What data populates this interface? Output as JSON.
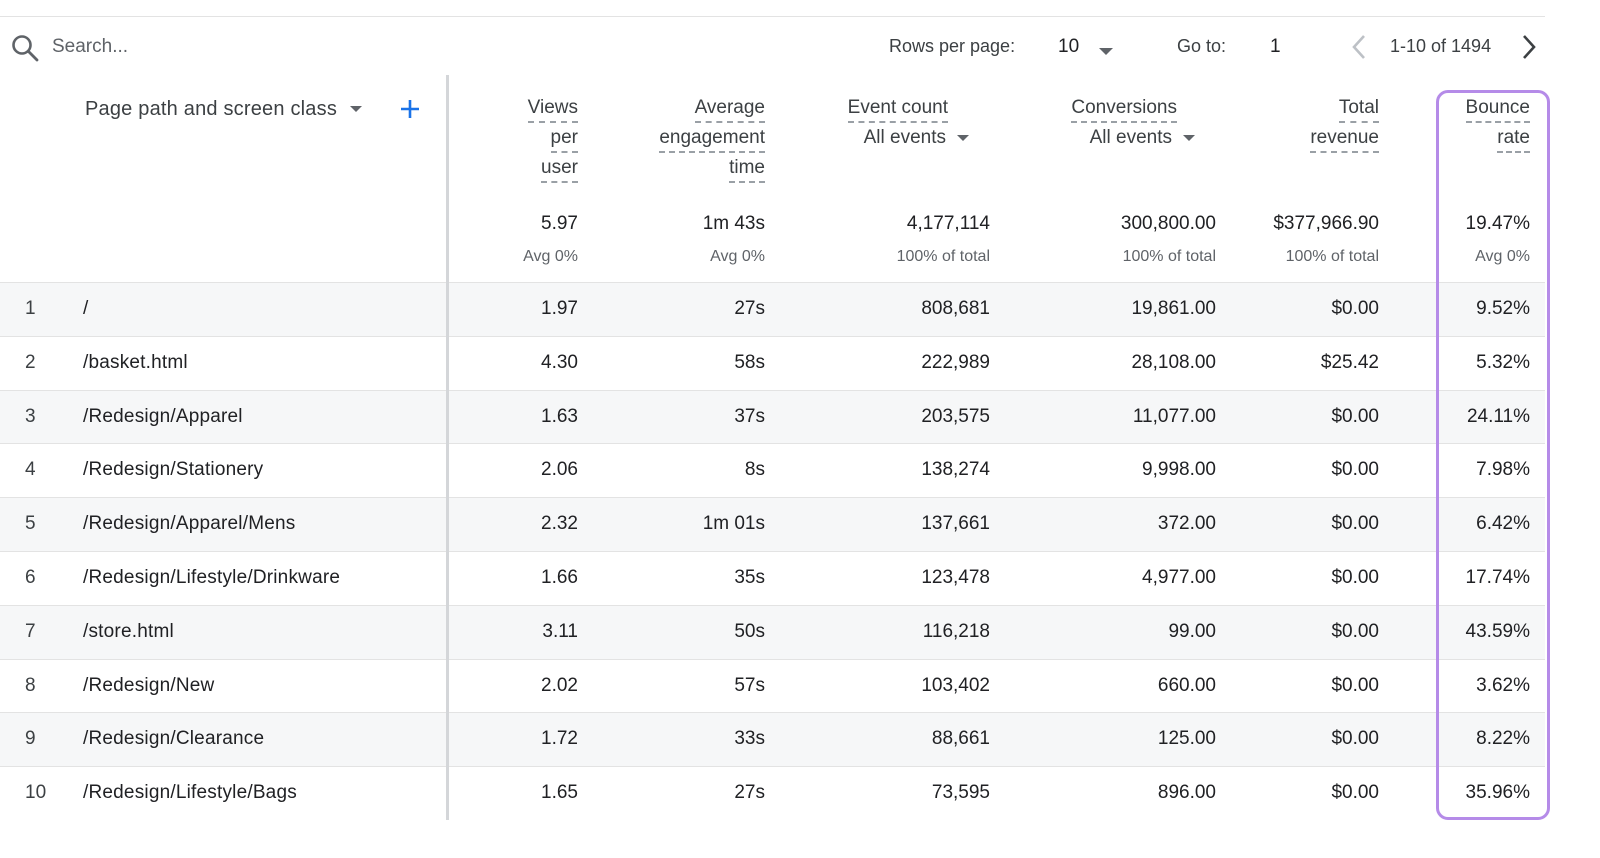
{
  "search": {
    "placeholder": "Search..."
  },
  "pagination": {
    "rows_per_page_label": "Rows per page:",
    "rows_per_page_value": "10",
    "goto_label": "Go to:",
    "goto_value": "1",
    "range_text": "1-10 of 1494"
  },
  "dimension": {
    "label": "Page path and screen class"
  },
  "columns": [
    {
      "key": "views",
      "lines": [
        "Views",
        "per",
        "user"
      ],
      "total": "5.97",
      "total_sub": "Avg 0%"
    },
    {
      "key": "engagement",
      "lines": [
        "Average",
        "engagement",
        "time"
      ],
      "total": "1m 43s",
      "total_sub": "Avg 0%"
    },
    {
      "key": "events",
      "lines": [
        "Event count"
      ],
      "dropdown": "All events",
      "total": "4,177,114",
      "total_sub": "100% of total"
    },
    {
      "key": "conversions",
      "lines": [
        "Conversions"
      ],
      "dropdown": "All events",
      "total": "300,800.00",
      "total_sub": "100% of total"
    },
    {
      "key": "revenue",
      "lines": [
        "Total",
        "revenue"
      ],
      "total": "$377,966.90",
      "total_sub": "100% of total"
    },
    {
      "key": "bounce",
      "lines": [
        "Bounce",
        "rate"
      ],
      "total": "19.47%",
      "total_sub": "Avg 0%"
    }
  ],
  "rows": [
    {
      "idx": "1",
      "path": "/",
      "views": "1.97",
      "engagement": "27s",
      "events": "808,681",
      "conversions": "19,861.00",
      "revenue": "$0.00",
      "bounce": "9.52%"
    },
    {
      "idx": "2",
      "path": "/basket.html",
      "views": "4.30",
      "engagement": "58s",
      "events": "222,989",
      "conversions": "28,108.00",
      "revenue": "$25.42",
      "bounce": "5.32%"
    },
    {
      "idx": "3",
      "path": "/Redesign/Apparel",
      "views": "1.63",
      "engagement": "37s",
      "events": "203,575",
      "conversions": "11,077.00",
      "revenue": "$0.00",
      "bounce": "24.11%"
    },
    {
      "idx": "4",
      "path": "/Redesign/Stationery",
      "views": "2.06",
      "engagement": "8s",
      "events": "138,274",
      "conversions": "9,998.00",
      "revenue": "$0.00",
      "bounce": "7.98%"
    },
    {
      "idx": "5",
      "path": "/Redesign/Apparel/Mens",
      "views": "2.32",
      "engagement": "1m 01s",
      "events": "137,661",
      "conversions": "372.00",
      "revenue": "$0.00",
      "bounce": "6.42%"
    },
    {
      "idx": "6",
      "path": "/Redesign/Lifestyle/Drinkware",
      "views": "1.66",
      "engagement": "35s",
      "events": "123,478",
      "conversions": "4,977.00",
      "revenue": "$0.00",
      "bounce": "17.74%"
    },
    {
      "idx": "7",
      "path": "/store.html",
      "views": "3.11",
      "engagement": "50s",
      "events": "116,218",
      "conversions": "99.00",
      "revenue": "$0.00",
      "bounce": "43.59%"
    },
    {
      "idx": "8",
      "path": "/Redesign/New",
      "views": "2.02",
      "engagement": "57s",
      "events": "103,402",
      "conversions": "660.00",
      "revenue": "$0.00",
      "bounce": "3.62%"
    },
    {
      "idx": "9",
      "path": "/Redesign/Clearance",
      "views": "1.72",
      "engagement": "33s",
      "events": "88,661",
      "conversions": "125.00",
      "revenue": "$0.00",
      "bounce": "8.22%"
    },
    {
      "idx": "10",
      "path": "/Redesign/Lifestyle/Bags",
      "views": "1.65",
      "engagement": "27s",
      "events": "73,595",
      "conversions": "896.00",
      "revenue": "$0.00",
      "bounce": "35.96%"
    }
  ],
  "colors": {
    "highlight": "#b58be8",
    "accent": "#1a73e8",
    "separator": "#d4d6d9"
  },
  "icons": [
    "search-icon",
    "caret-down-icon",
    "plus-icon",
    "chevron-left-icon",
    "chevron-right-icon"
  ]
}
